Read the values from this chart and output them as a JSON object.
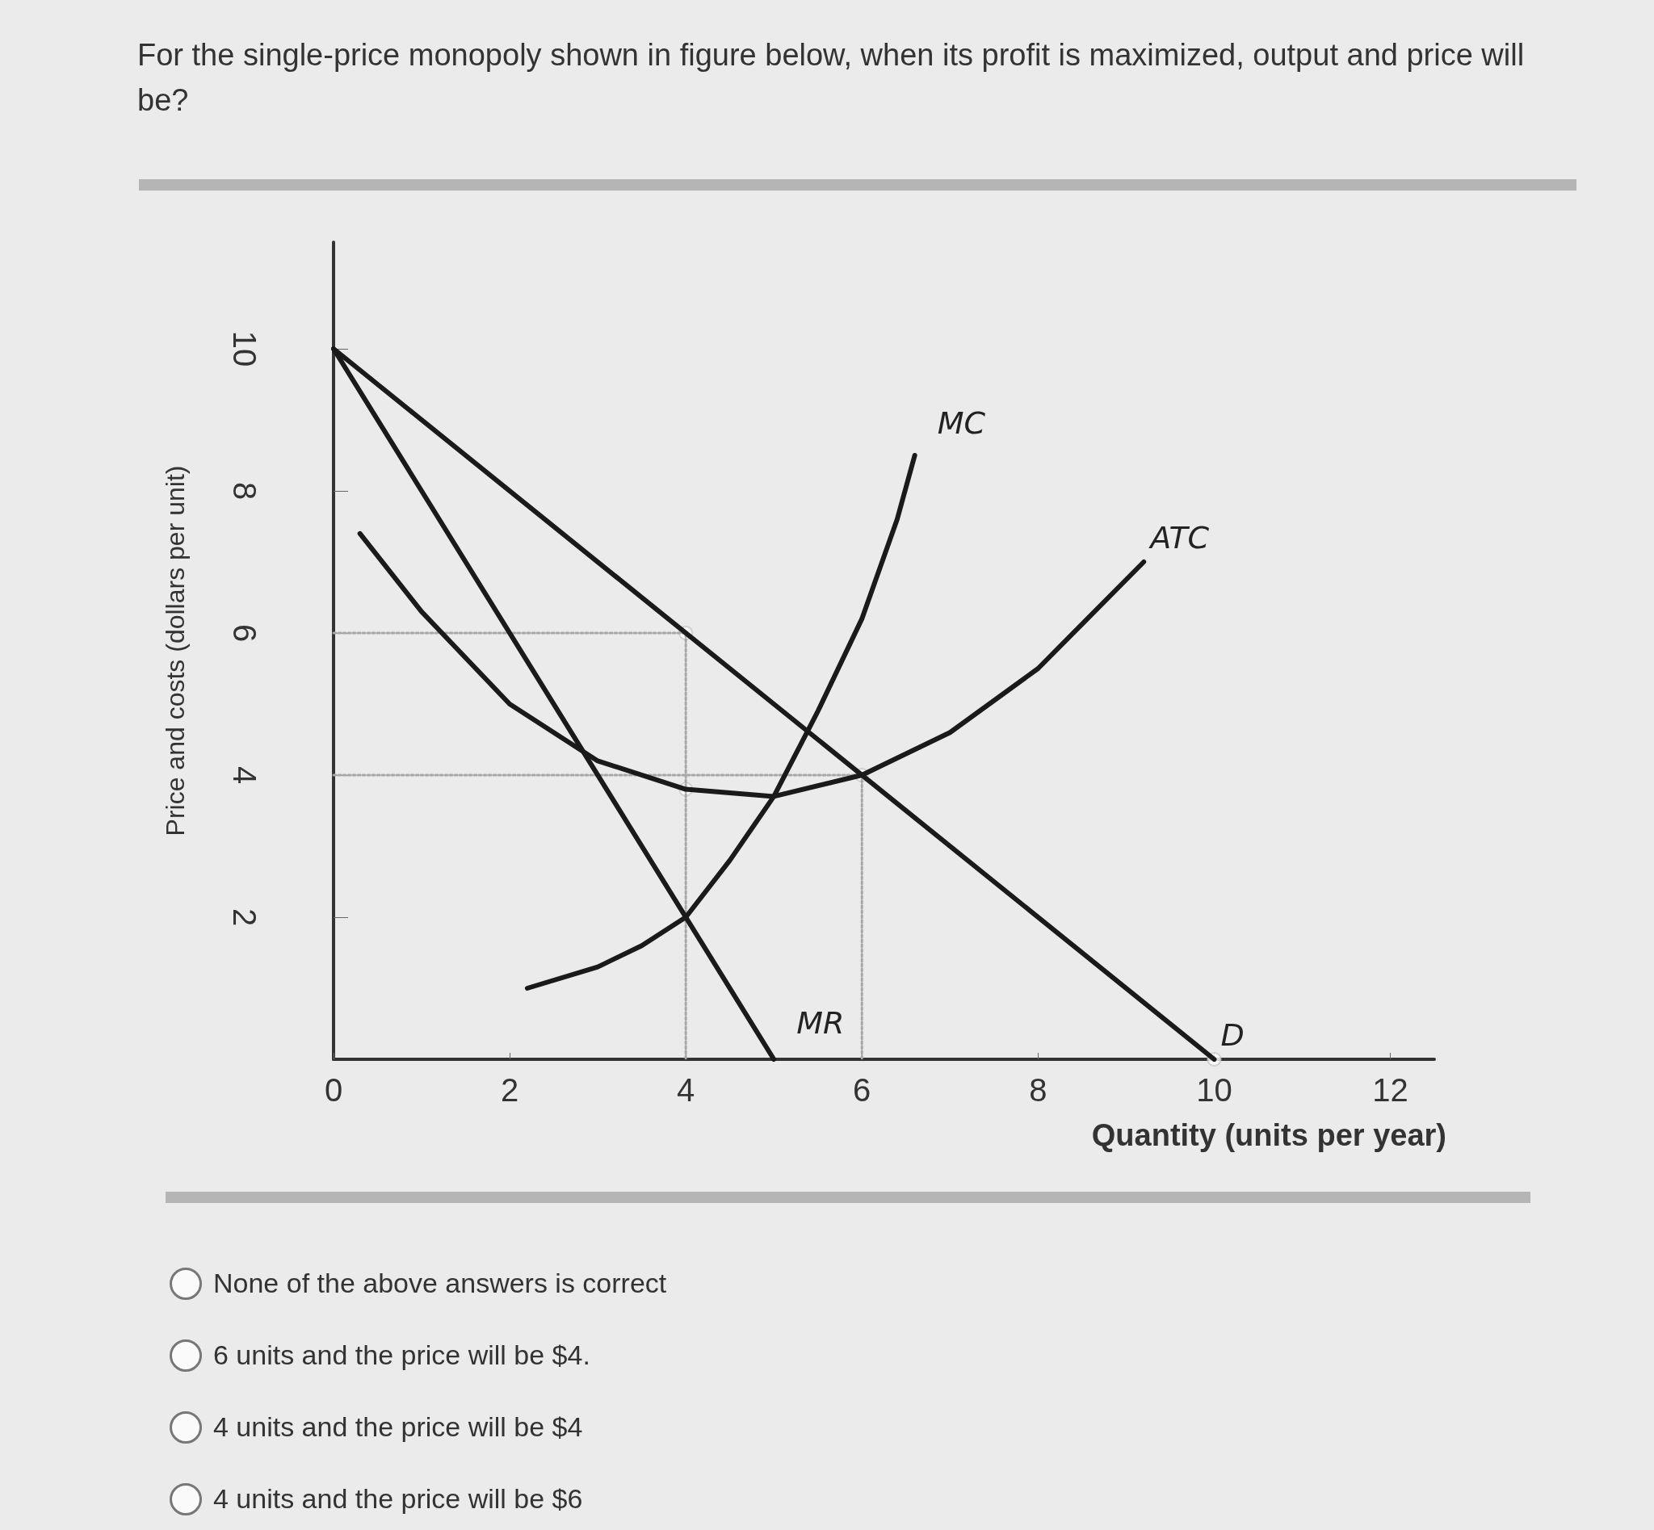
{
  "chart_data": {
    "type": "line",
    "title": "For the single-price monopoly shown in figure below, when its profit is maximized, output and price will be?",
    "xlabel": "Quantity (units per year)",
    "ylabel": "Price and costs (dollars per unit)",
    "xlim": [
      0,
      12.5
    ],
    "xticks": [
      0,
      2,
      4,
      6,
      8,
      10,
      12
    ],
    "ylim": [
      0,
      11.5
    ],
    "yticks": [
      2,
      4,
      6,
      8,
      10
    ],
    "grid": false,
    "legend": false,
    "marker": "none",
    "series": [
      {
        "name": "D",
        "color": "#1a1a1a",
        "x": [
          0,
          10
        ],
        "values": [
          10,
          0
        ]
      },
      {
        "name": "MR",
        "color": "#1a1a1a",
        "x": [
          0,
          5
        ],
        "values": [
          10,
          0
        ]
      },
      {
        "name": "ATC",
        "color": "#1a1a1a",
        "x": [
          0.3,
          1,
          2,
          3,
          4,
          5,
          6,
          7,
          8,
          9.2
        ],
        "values": [
          7.4,
          6.3,
          5,
          4.2,
          3.8,
          3.7,
          4,
          4.6,
          5.5,
          7
        ]
      },
      {
        "name": "MC",
        "color": "#1a1a1a",
        "x": [
          2.2,
          3,
          3.5,
          4,
          4.5,
          5,
          5.5,
          6,
          6.4,
          6.6
        ],
        "values": [
          1,
          1.3,
          1.6,
          2,
          2.8,
          3.7,
          4.9,
          6.2,
          7.6,
          8.5
        ]
      },
      {
        "color": "#a8a8a8",
        "line_style": "dotted",
        "x": [
          0,
          4,
          4
        ],
        "values": [
          6,
          6,
          0
        ]
      },
      {
        "color": "#a8a8a8",
        "line_style": "dotted",
        "x": [
          0,
          6,
          6
        ],
        "values": [
          4,
          4,
          0
        ]
      },
      {
        "type": "scatter",
        "marker": "circle",
        "color": "#ffffff",
        "x": [
          4,
          4,
          6,
          10
        ],
        "values": [
          6,
          3.8,
          4,
          0
        ]
      }
    ],
    "annotations": [
      "None of the above answers is correct",
      "6 units and the price will be $4.",
      "4 units and the price will be $4",
      "4 units and the price will be $6"
    ]
  }
}
